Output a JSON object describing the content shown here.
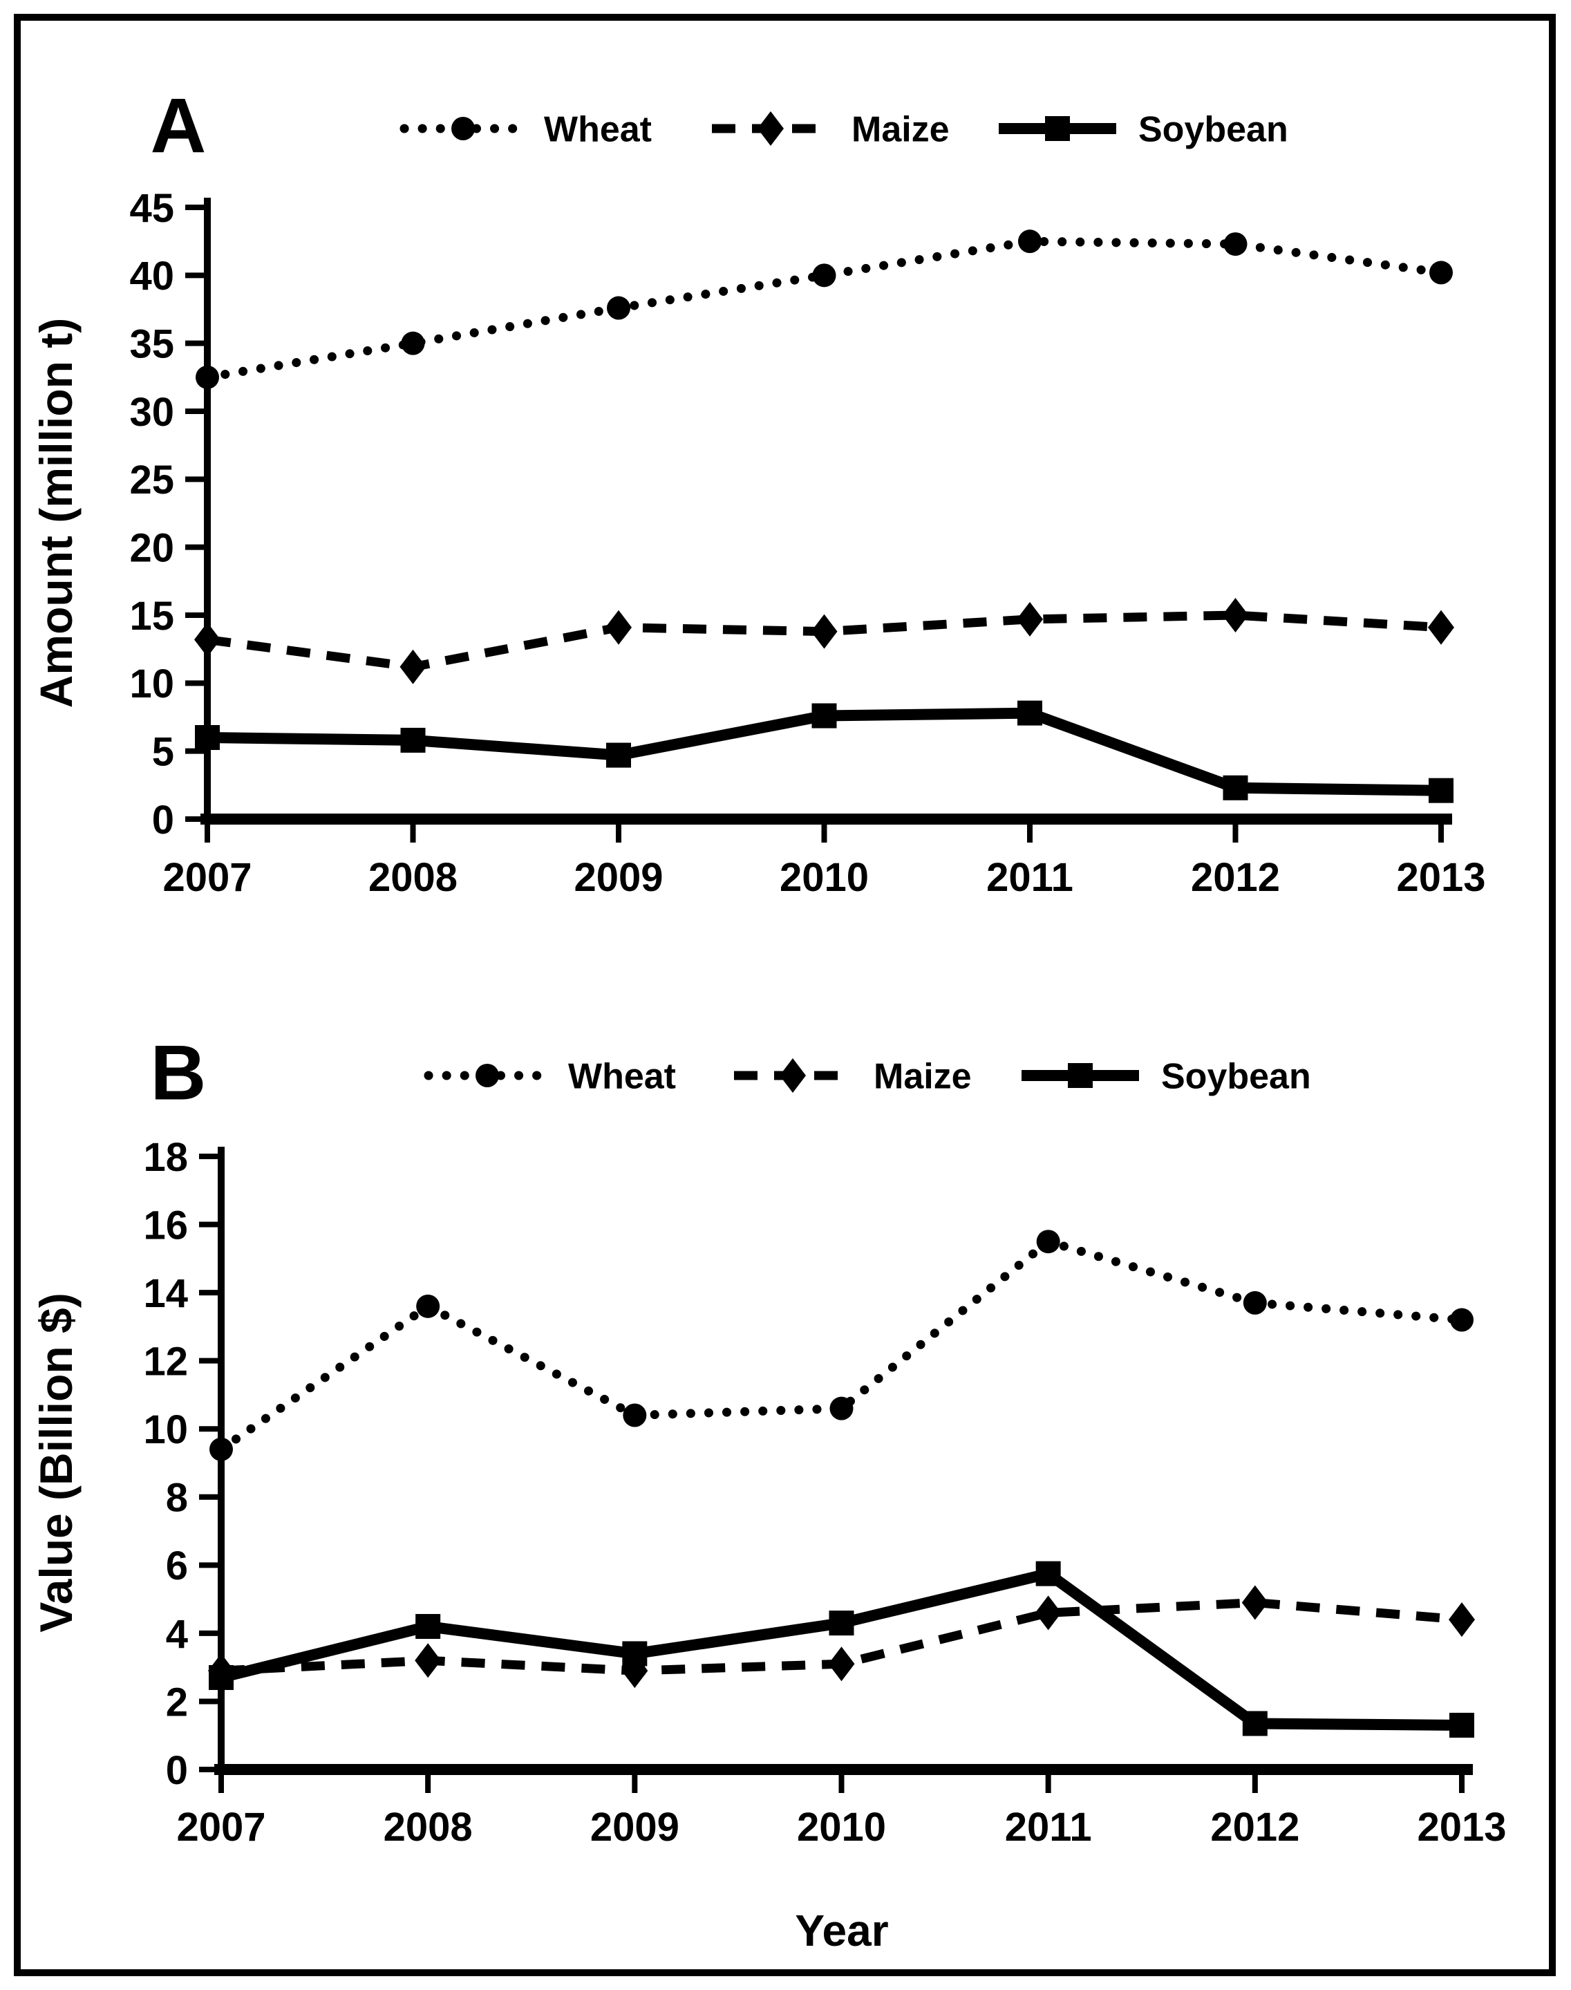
{
  "figure": {
    "ink_color": "#000000",
    "background_color": "#ffffff",
    "panels": [
      "A",
      "B"
    ]
  },
  "chart_data": [
    {
      "type": "line",
      "panel_label": "A",
      "title": "",
      "xlabel": "",
      "ylabel": "Amount (million t)",
      "x": [
        2007,
        2008,
        2009,
        2010,
        2011,
        2012,
        2013
      ],
      "ylim": [
        0,
        45
      ],
      "ytick_step": 5,
      "ytick_labels": [
        "0",
        "5",
        "10",
        "15",
        "20",
        "25",
        "30",
        "35",
        "40",
        "45"
      ],
      "grid": false,
      "legend_position": "top",
      "series": [
        {
          "name": "Wheat",
          "style": "dotted",
          "marker": "circle",
          "values": [
            32.5,
            35.0,
            37.6,
            40.0,
            42.5,
            42.3,
            40.2
          ]
        },
        {
          "name": "Maize",
          "style": "dashed",
          "marker": "diamond",
          "values": [
            13.2,
            11.2,
            14.1,
            13.8,
            14.7,
            15.0,
            14.1
          ]
        },
        {
          "name": "Soybean",
          "style": "solid",
          "marker": "square",
          "values": [
            6.0,
            5.8,
            4.7,
            7.6,
            7.8,
            2.3,
            2.1
          ]
        }
      ]
    },
    {
      "type": "line",
      "panel_label": "B",
      "title": "",
      "xlabel": "Year",
      "ylabel": "Value (Billion $)",
      "x": [
        2007,
        2008,
        2009,
        2010,
        2011,
        2012,
        2013
      ],
      "ylim": [
        0,
        18
      ],
      "ytick_step": 2,
      "ytick_labels": [
        "0",
        "2",
        "4",
        "6",
        "8",
        "10",
        "12",
        "14",
        "16",
        "18"
      ],
      "grid": false,
      "legend_position": "top",
      "series": [
        {
          "name": "Wheat",
          "style": "dotted",
          "marker": "circle",
          "values": [
            9.4,
            13.6,
            10.4,
            10.6,
            15.5,
            13.7,
            13.2
          ]
        },
        {
          "name": "Maize",
          "style": "dashed",
          "marker": "diamond",
          "values": [
            2.9,
            3.2,
            2.9,
            3.1,
            4.6,
            4.9,
            4.4
          ]
        },
        {
          "name": "Soybean",
          "style": "solid",
          "marker": "square",
          "values": [
            2.7,
            4.2,
            3.4,
            4.3,
            5.75,
            1.35,
            1.3
          ]
        }
      ]
    }
  ]
}
